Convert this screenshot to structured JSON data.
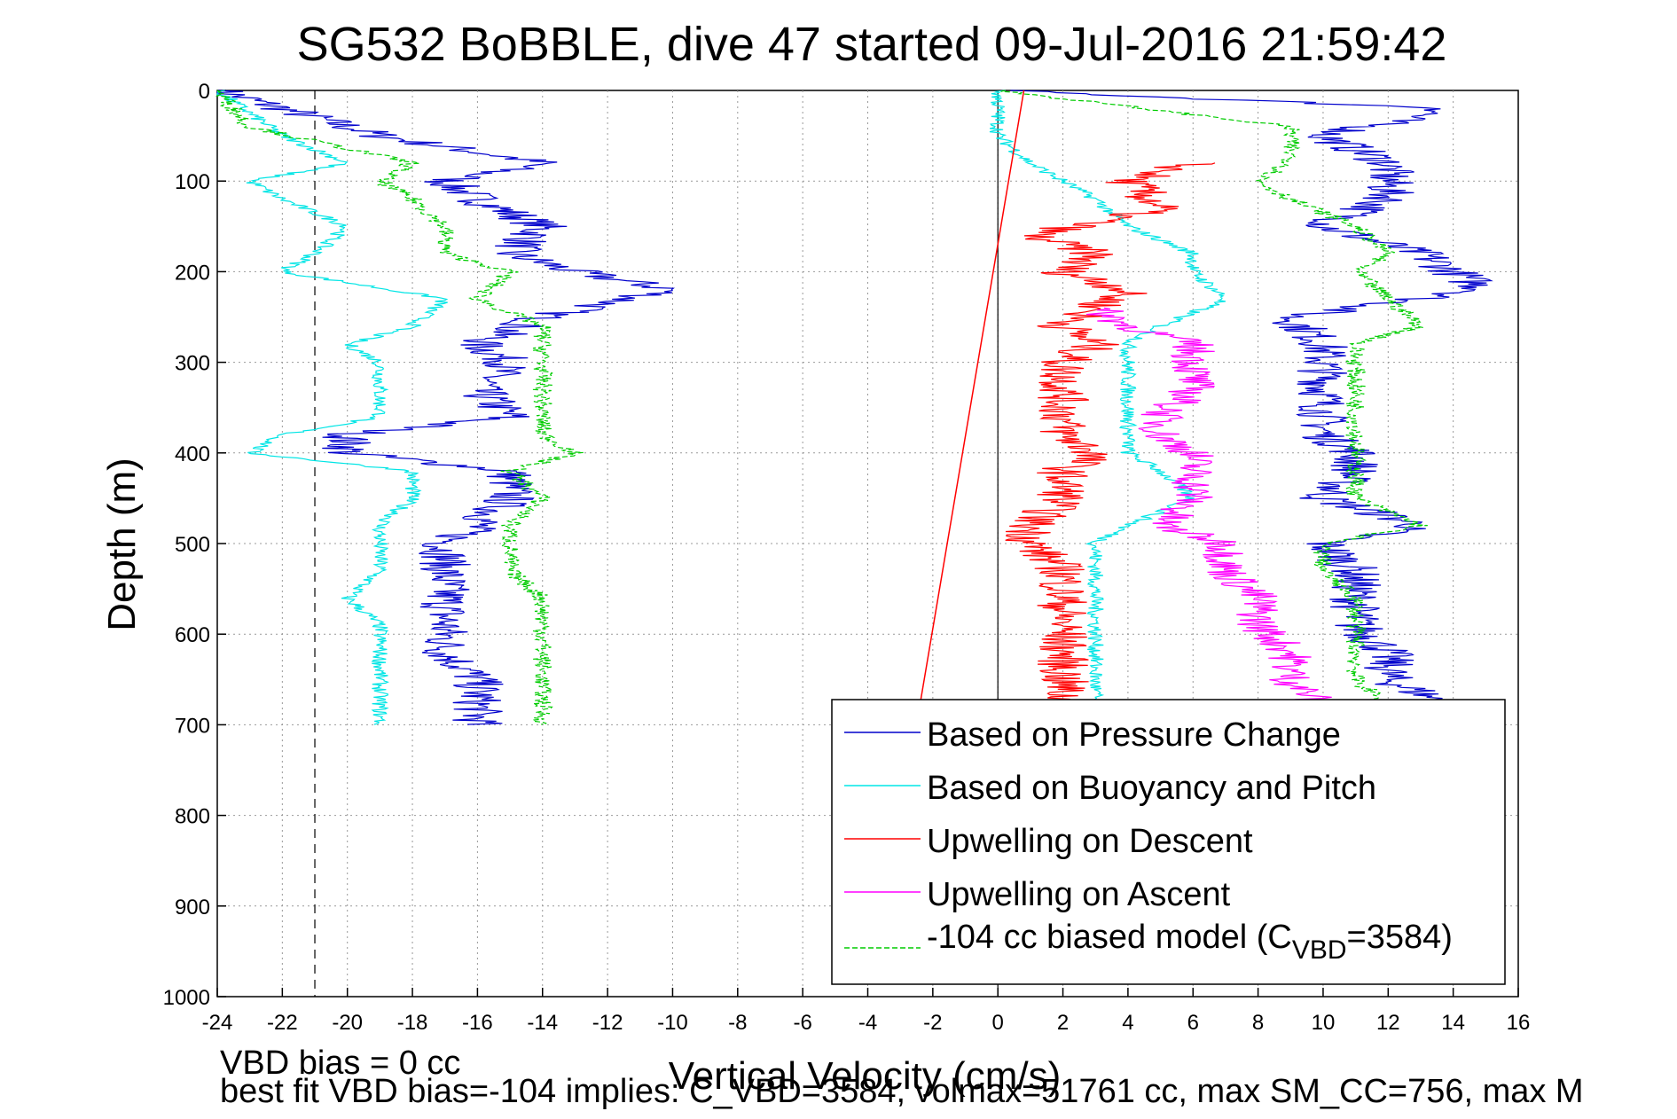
{
  "chart_data": {
    "type": "line",
    "title": "SG532 BoBBLE, dive 47 started 09-Jul-2016 21:59:42",
    "xlabel": "Vertical Velocity (cm/s)",
    "ylabel": "Depth (m)",
    "xlim": [
      -24,
      16
    ],
    "ylim": [
      0,
      1000
    ],
    "y_reversed": true,
    "xticks": [
      "-24",
      "-22",
      "-20",
      "-18",
      "-16",
      "-14",
      "-12",
      "-10",
      "-8",
      "-6",
      "-4",
      "-2",
      "0",
      "2",
      "4",
      "6",
      "8",
      "10",
      "12",
      "14",
      "16"
    ],
    "yticks": [
      "0",
      "100",
      "200",
      "300",
      "400",
      "500",
      "600",
      "700",
      "800",
      "900",
      "1000"
    ],
    "grid": "dotted",
    "legend_position": "bottom-right",
    "vertical_line_x": 0,
    "dashed_vertical_line_x": -21,
    "series": [
      {
        "name": "Based on Pressure Change",
        "color": "#0000cc",
        "legend_label": "Based on Pressure Change",
        "depth": [
          0,
          20,
          50,
          80,
          100,
          120,
          150,
          180,
          200,
          220,
          250,
          280,
          300,
          330,
          360,
          380,
          400,
          420,
          450,
          480,
          500,
          530,
          560,
          590,
          620,
          650,
          680,
          700
        ],
        "x_descent": [
          -24,
          -22,
          -19,
          -14,
          -17,
          -16,
          -14,
          -15,
          -13,
          -10,
          -14,
          -16,
          -15,
          -16,
          -15,
          -20,
          -20,
          -15,
          -15,
          -16,
          -17,
          -17,
          -17,
          -17,
          -17,
          -16,
          -16,
          -16
        ],
        "x_ascent": [
          0,
          14,
          10,
          12,
          12,
          12,
          10,
          13,
          14,
          15,
          9,
          10,
          10,
          10,
          10,
          10,
          11,
          11,
          10,
          13,
          10,
          11,
          11,
          11,
          12,
          12,
          14,
          15
        ]
      },
      {
        "name": "Based on Buoyancy and Pitch",
        "color": "#00e5e5",
        "legend_label": "Based on Buoyancy and Pitch",
        "depth": [
          0,
          50,
          80,
          100,
          120,
          150,
          180,
          200,
          230,
          260,
          280,
          300,
          330,
          360,
          380,
          400,
          420,
          450,
          480,
          500,
          530,
          560,
          590,
          620,
          650,
          680,
          700
        ],
        "x_descent": [
          -24,
          -22,
          -20,
          -23,
          -22,
          -20,
          -21,
          -22,
          -17,
          -18,
          -20,
          -19,
          -19,
          -19,
          -22,
          -23,
          -18,
          -18,
          -19,
          -19,
          -19,
          -20,
          -19,
          -19,
          -19,
          -19,
          -19
        ],
        "x_ascent": [
          0,
          0,
          1,
          2,
          3,
          4,
          6,
          6,
          7,
          5,
          4,
          4,
          4,
          4,
          4,
          4,
          5,
          6,
          4,
          3,
          3,
          3,
          3,
          3,
          3,
          3,
          3
        ]
      },
      {
        "name": "Upwelling on Descent",
        "color": "#ff0000",
        "legend_label": "Upwelling on Descent",
        "depth": [
          80,
          100,
          130,
          160,
          180,
          200,
          220,
          240,
          260,
          280,
          300,
          330,
          360,
          380,
          400,
          420,
          450,
          480,
          500,
          530,
          560,
          590,
          620,
          650,
          680
        ],
        "x_descent": [
          6,
          4,
          5,
          1,
          3,
          2,
          4,
          3,
          2,
          3,
          2,
          2,
          2,
          2,
          3,
          2,
          2,
          1,
          1,
          2,
          2,
          2,
          2,
          2,
          2
        ]
      },
      {
        "name": "Upwelling on Ascent",
        "color": "#ff00ff",
        "legend_label": "Upwelling on Ascent",
        "depth": [
          240,
          260,
          280,
          300,
          330,
          360,
          380,
          400,
          420,
          450,
          480,
          500,
          530,
          560,
          590,
          620,
          650,
          680
        ],
        "x_ascent": [
          3,
          4,
          6,
          6,
          6,
          5,
          5,
          6,
          6,
          6,
          5,
          7,
          7,
          8,
          8,
          9,
          9,
          10
        ]
      },
      {
        "name": "-104 cc biased model",
        "color": "#00cc00",
        "legend_label": "-104 cc biased model (C",
        "legend_sub": "VBD",
        "legend_suffix": "=3584)",
        "depth": [
          0,
          40,
          80,
          100,
          120,
          150,
          180,
          200,
          230,
          260,
          280,
          300,
          330,
          360,
          380,
          400,
          420,
          450,
          480,
          500,
          530,
          560,
          590,
          620,
          650,
          680,
          700
        ],
        "x_descent": [
          -24,
          -23,
          -18,
          -19,
          -18,
          -17,
          -17,
          -15,
          -16,
          -14,
          -14,
          -14,
          -14,
          -14,
          -14,
          -13,
          -15,
          -14,
          -15,
          -15,
          -15,
          -14,
          -14,
          -14,
          -14,
          -14,
          -14
        ],
        "x_ascent": [
          0,
          9,
          9,
          8,
          9,
          11,
          12,
          11,
          12,
          13,
          11,
          11,
          11,
          11,
          11,
          11,
          11,
          11,
          13,
          10,
          10,
          11,
          11,
          11,
          11,
          12,
          14
        ]
      }
    ],
    "reference_line": {
      "color": "#ff0000",
      "x_at_depth0": 0.8,
      "x_at_depth700": -2.5
    }
  },
  "footnotes": {
    "line1": "VBD bias = 0 cc",
    "line2": "best fit VBD bias=-104 implies: C_VBD=3584, volmax=51761 cc, max SM_CC=756, max M"
  }
}
